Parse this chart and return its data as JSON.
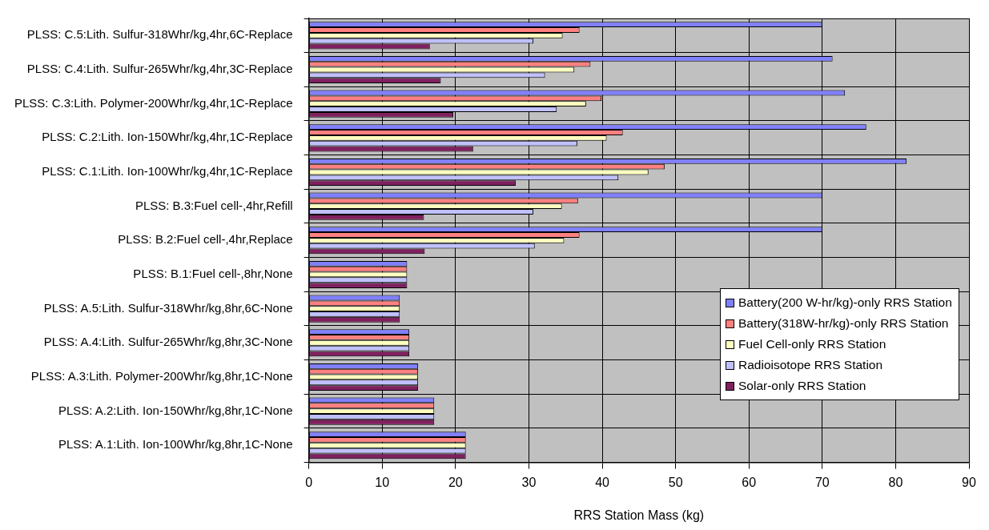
{
  "chart_data": {
    "type": "bar",
    "orientation": "horizontal",
    "xlabel": "RRS Station Mass (kg)",
    "categories": [
      "PLSS: C.5:Lith. Sulfur-318Whr/kg,4hr,6C-Replace",
      "PLSS: C.4:Lith. Sulfur-265Whr/kg,4hr,3C-Replace",
      "PLSS: C.3:Lith. Polymer-200Whr/kg,4hr,1C-Replace",
      "PLSS: C.2:Lith. Ion-150Whr/kg,4hr,1C-Replace",
      "PLSS: C.1:Lith. Ion-100Whr/kg,4hr,1C-Replace",
      "PLSS: B.3:Fuel cell-,4hr,Refill",
      "PLSS: B.2:Fuel cell-,4hr,Replace",
      "PLSS: B.1:Fuel cell-,8hr,None",
      "PLSS: A.5:Lith. Sulfur-318Whr/kg,8hr,6C-None",
      "PLSS: A.4:Lith. Sulfur-265Whr/kg,8hr,3C-None",
      "PLSS: A.3:Lith. Polymer-200Whr/kg,8hr,1C-None",
      "PLSS: A.2:Lith. Ion-150Whr/kg,8hr,1C-None",
      "PLSS: A.1:Lith. Ion-100Whr/kg,8hr,1C-None"
    ],
    "series": [
      {
        "name": "Battery(200 W-hr/kg)-only RRS Station",
        "color": "#8080ff",
        "values": [
          70,
          71.4,
          73.1,
          76,
          81.5,
          70,
          70,
          13.4,
          12.4,
          13.7,
          14.9,
          17.1,
          21.4
        ]
      },
      {
        "name": "Battery(318W-hr/kg)-only RRS Station",
        "color": "#ff8080",
        "values": [
          36.9,
          38.4,
          39.9,
          42.8,
          48.5,
          36.7,
          36.9,
          13.4,
          12.4,
          13.7,
          14.9,
          17.1,
          21.4
        ]
      },
      {
        "name": "Fuel Cell-only RRS Station",
        "color": "#ffffc0",
        "values": [
          34.6,
          36.2,
          37.8,
          40.6,
          46.3,
          34.5,
          34.8,
          13.4,
          12.4,
          13.7,
          14.9,
          17.1,
          21.4
        ]
      },
      {
        "name": "Radioisotope RRS Station",
        "color": "#c0c0ff",
        "values": [
          30.6,
          32.2,
          33.8,
          36.6,
          42.2,
          30.6,
          30.8,
          13.4,
          12.4,
          13.7,
          14.9,
          17.1,
          21.4
        ]
      },
      {
        "name": "Solar-only RRS Station",
        "color": "#802060",
        "values": [
          16.5,
          18,
          19.7,
          22.4,
          28.2,
          15.7,
          15.8,
          13.4,
          12.4,
          13.7,
          14.9,
          17.1,
          21.4
        ]
      }
    ],
    "xlim": [
      0,
      90
    ],
    "xticks": [
      0,
      10,
      20,
      30,
      40,
      50,
      60,
      70,
      80,
      90
    ],
    "grid": true,
    "legend": "right"
  }
}
